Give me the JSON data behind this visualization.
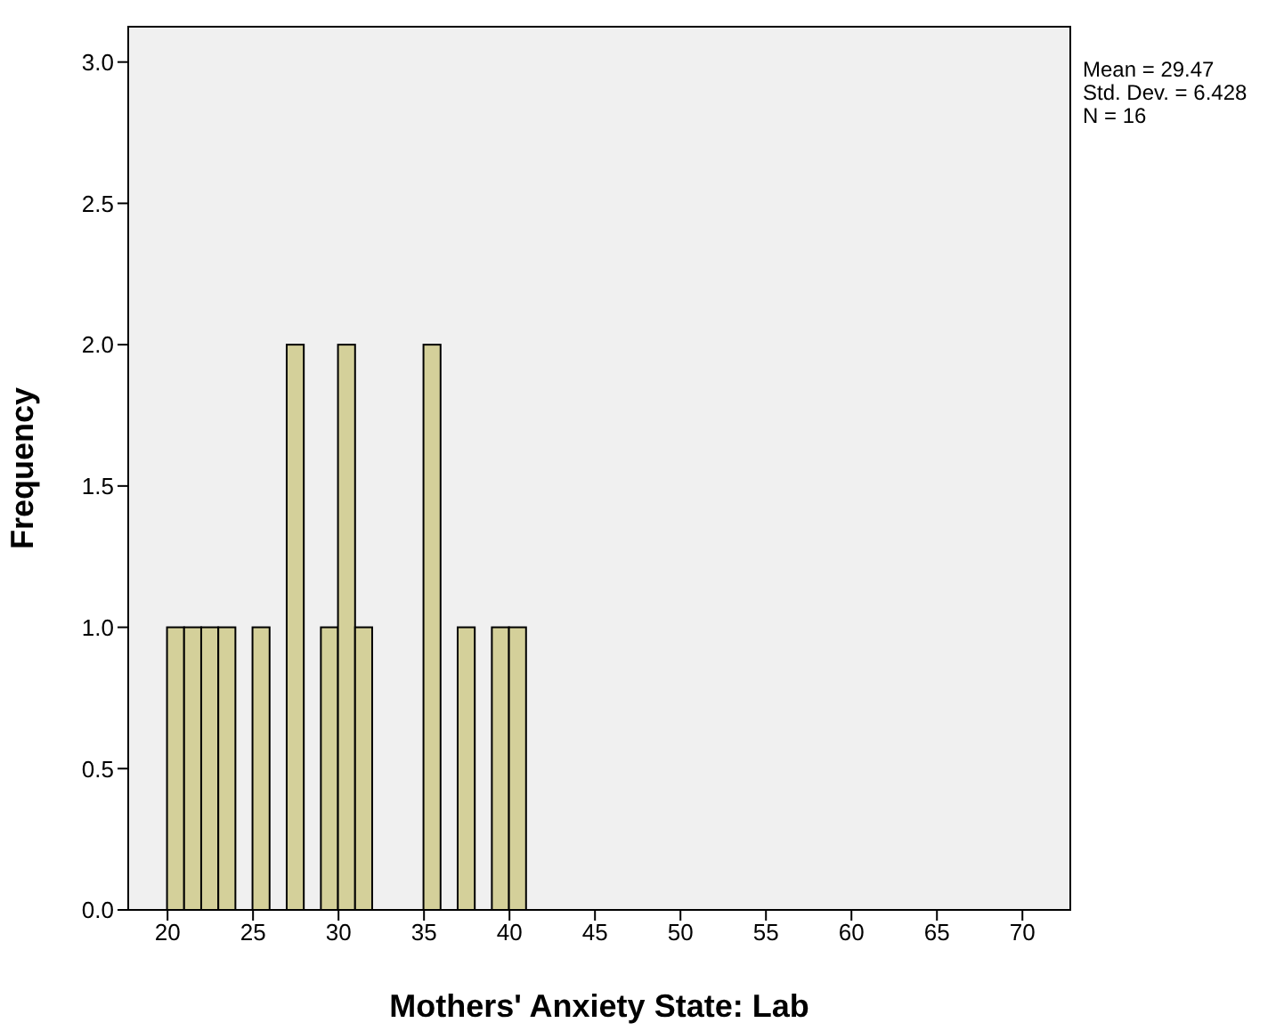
{
  "chart_data": {
    "type": "histogram",
    "xlabel": "Mothers' Anxiety State: Lab",
    "ylabel": "Frequency",
    "bins": [
      20,
      21,
      22,
      23,
      24,
      25,
      26,
      27,
      28,
      29,
      30,
      31,
      32,
      33,
      34,
      35,
      36,
      37,
      38,
      39,
      40,
      41
    ],
    "values": [
      1,
      1,
      1,
      1,
      0,
      1,
      0,
      2,
      0,
      1,
      2,
      1,
      0,
      0,
      0,
      2,
      0,
      1,
      0,
      1,
      1
    ],
    "color": "#d4d09a",
    "xlim": [
      17.7,
      72.8
    ],
    "xticks": [
      20,
      25,
      30,
      35,
      40,
      45,
      50,
      55,
      60,
      65,
      70
    ],
    "ylim": [
      0,
      3.125
    ],
    "yticks": [
      {
        "value": 0,
        "label": "0.0"
      },
      {
        "value": 0.5,
        "label": "0.5"
      },
      {
        "value": 1,
        "label": "1.0"
      },
      {
        "value": 1.5,
        "label": "1.5"
      },
      {
        "value": 2,
        "label": "2.0"
      },
      {
        "value": 2.5,
        "label": "2.5"
      },
      {
        "value": 3,
        "label": "3.0"
      }
    ],
    "annotations": [
      "Mean = 29.47",
      "Std. Dev. = 6.428",
      "N = 16"
    ]
  }
}
